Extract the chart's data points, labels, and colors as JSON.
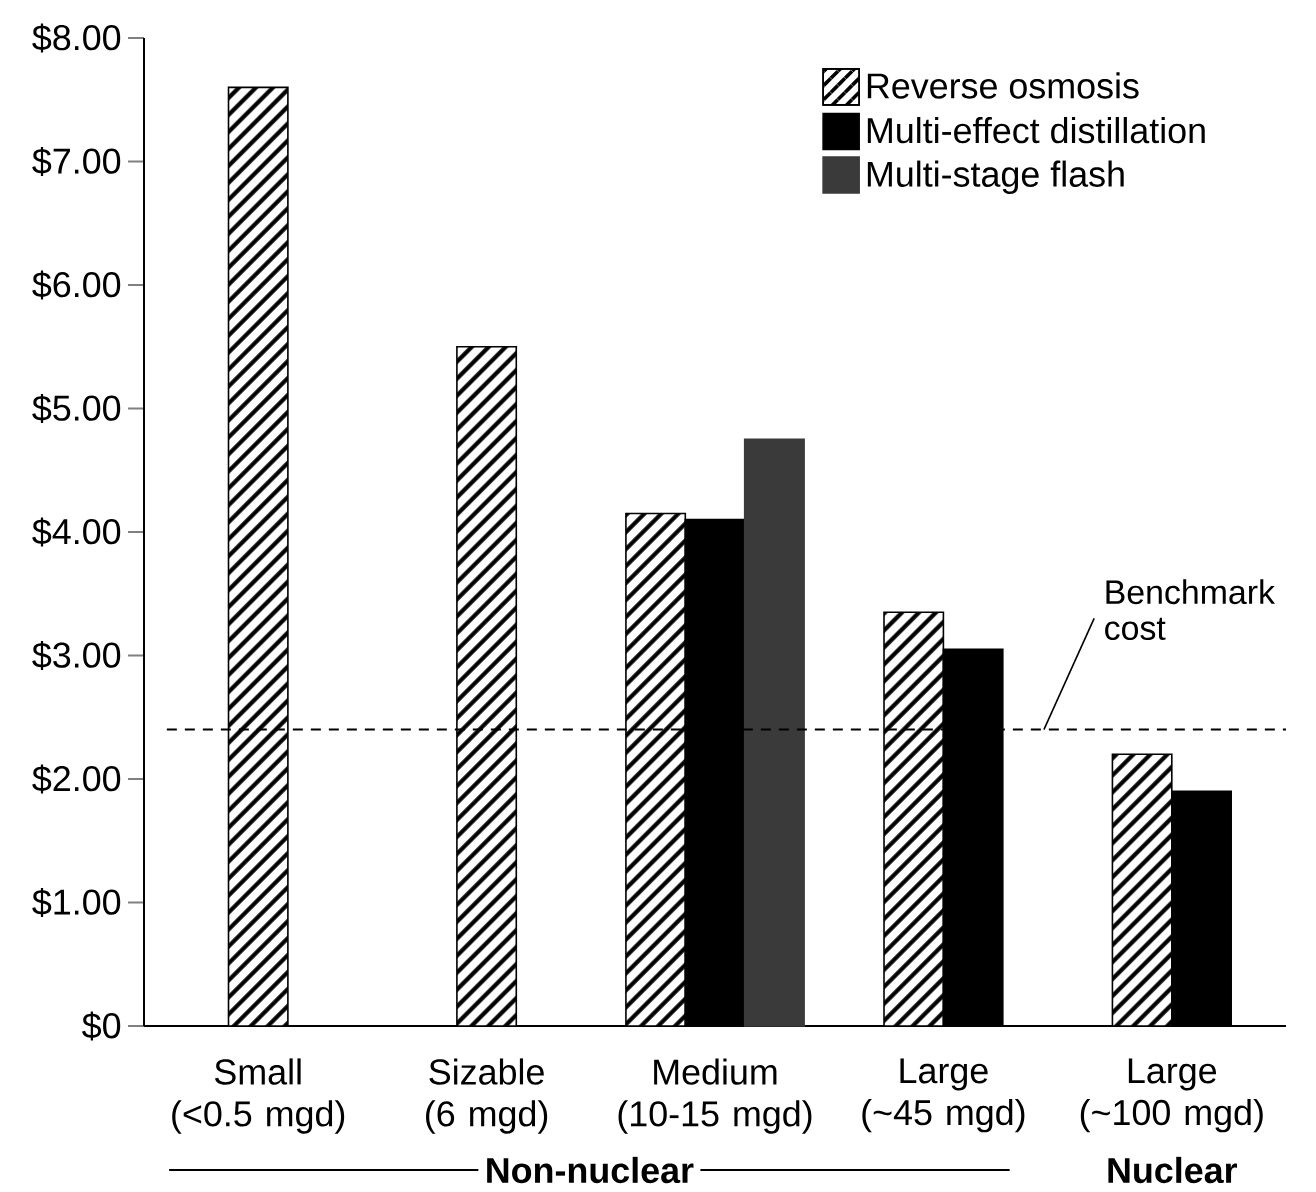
{
  "chart_data": {
    "type": "bar",
    "categories": [
      "Small (<0.5 mgd)",
      "Sizable (6 mgd)",
      "Medium (10-15 mgd)",
      "Large (~45 mgd)",
      "Large (~100 mgd)"
    ],
    "series": [
      {
        "name": "Reverse osmosis",
        "color": "#ffffff",
        "values": [
          7.6,
          5.5,
          4.15,
          3.35,
          2.2
        ]
      },
      {
        "name": "Multi-effect distillation",
        "color": "#000000",
        "values": [
          null,
          null,
          4.1,
          3.05,
          1.9
        ]
      },
      {
        "name": "Multi-stage flash",
        "color": "#3a3a3a",
        "values": [
          null,
          null,
          4.75,
          null,
          null
        ]
      }
    ],
    "ylim": [
      0,
      8
    ],
    "yticks": [
      {
        "value": 0,
        "label": "$0"
      },
      {
        "value": 1,
        "label": "$1.00"
      },
      {
        "value": 2,
        "label": "$2.00"
      },
      {
        "value": 3,
        "label": "$3.00"
      },
      {
        "value": 4,
        "label": "$4.00"
      },
      {
        "value": 5,
        "label": "$5.00"
      },
      {
        "value": 6,
        "label": "$6.00"
      },
      {
        "value": 7,
        "label": "$7.00"
      },
      {
        "value": 8,
        "label": "$8.00"
      }
    ],
    "ref_lines": [
      {
        "axis": "y",
        "value": 2.4,
        "label": "Benchmark cost",
        "color": "#000000",
        "line_style": "dashed"
      }
    ],
    "annotations": [
      "Non-nuclear",
      "Nuclear"
    ],
    "legend": "top right"
  }
}
